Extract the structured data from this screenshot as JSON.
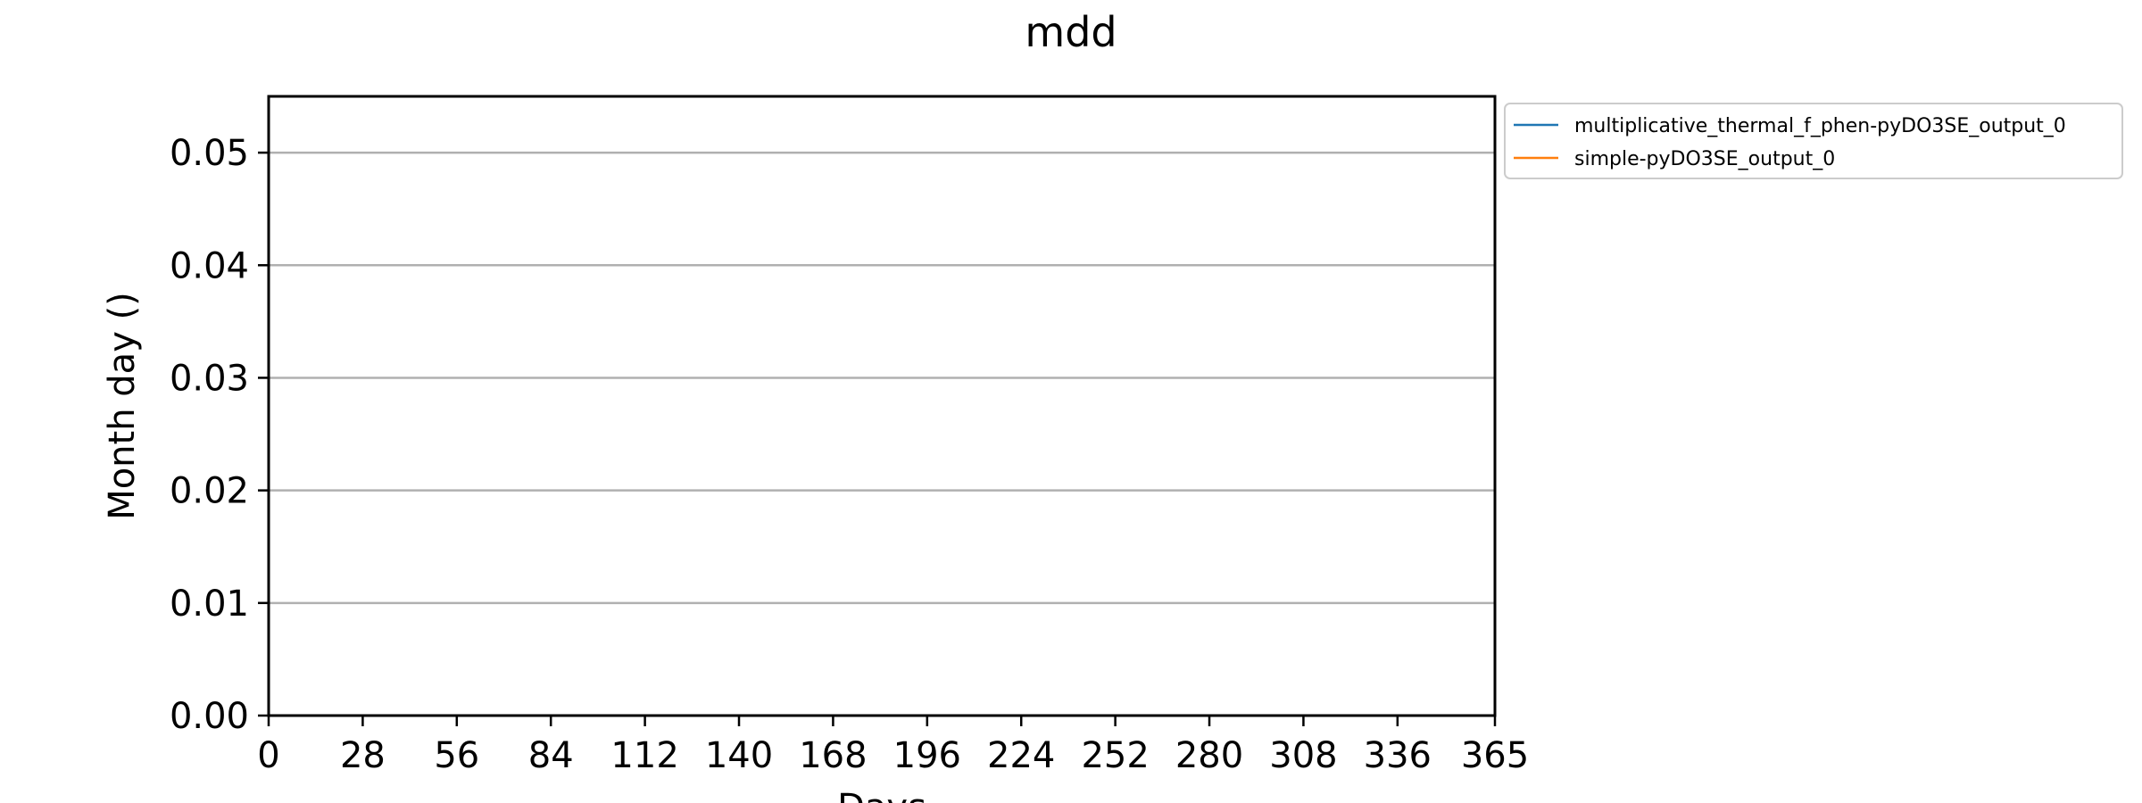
{
  "chart_data": {
    "type": "line",
    "title": "mdd",
    "xlabel": "Days",
    "ylabel": "Month day ()",
    "xlim": [
      0,
      365
    ],
    "ylim": [
      0,
      0.055
    ],
    "xticks": [
      0,
      28,
      56,
      84,
      112,
      140,
      168,
      196,
      224,
      252,
      280,
      308,
      336,
      365
    ],
    "yticks": [
      0,
      0.01,
      0.02,
      0.03,
      0.04,
      0.05
    ],
    "ytick_labels": [
      "0.00",
      "0.01",
      "0.02",
      "0.03",
      "0.04",
      "0.05"
    ],
    "grid": "horizontal",
    "legend_position": "outside-top-right",
    "series": [
      {
        "name": "multiplicative_thermal_f_phen-pyDO3SE_output_0",
        "color": "#1f77b4",
        "x": [
          0,
          365
        ],
        "y": [
          0,
          0
        ]
      },
      {
        "name": "simple-pyDO3SE_output_0",
        "color": "#ff7f0e",
        "x": [
          0,
          365
        ],
        "y": [
          0,
          0
        ]
      }
    ]
  }
}
